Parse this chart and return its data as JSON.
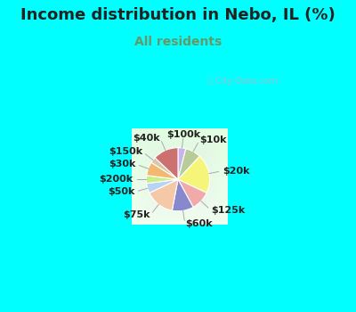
{
  "title": "Income distribution in Nebo, IL (%)",
  "subtitle": "All residents",
  "title_fontsize": 13,
  "subtitle_fontsize": 10,
  "title_color": "#222222",
  "subtitle_color": "#669966",
  "bg_cyan": "#00ffff",
  "bg_chart_corner": "#c8ecd0",
  "bg_chart_center": "#f0faf0",
  "watermark_text": "ⓘ City-Data.com",
  "watermark_color": "#aabbcc",
  "slices": [
    {
      "label": "$100k",
      "value": 4,
      "color": "#c8b4e8"
    },
    {
      "label": "$10k",
      "value": 8,
      "color": "#b8cc99"
    },
    {
      "label": "$20k",
      "value": 20,
      "color": "#f5f57a"
    },
    {
      "label": "$125k",
      "value": 10,
      "color": "#f0aaaa"
    },
    {
      "label": "$60k",
      "value": 11,
      "color": "#8888cc"
    },
    {
      "label": "$75k",
      "value": 15,
      "color": "#f5c8a8"
    },
    {
      "label": "$50k",
      "value": 5,
      "color": "#b8d4f5"
    },
    {
      "label": "$200k",
      "value": 4,
      "color": "#ccee88"
    },
    {
      "label": "$30k",
      "value": 7,
      "color": "#f5b870"
    },
    {
      "label": "$150k",
      "value": 3,
      "color": "#d8c8a8"
    },
    {
      "label": "$40k",
      "value": 13,
      "color": "#cc7070"
    }
  ],
  "label_fontsize": 8,
  "label_color": "#222222",
  "line_color": "#aaaaaa"
}
